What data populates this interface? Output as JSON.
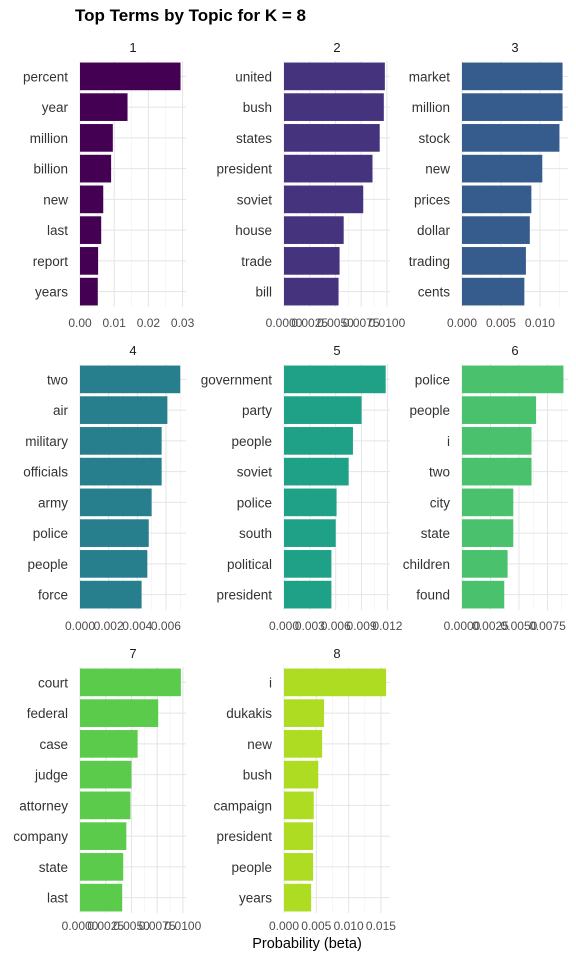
{
  "chart_data": {
    "type": "bar",
    "orientation": "horizontal",
    "facet": true,
    "title": "Top Terms by Topic for K = 8",
    "xlabel": "Probability (beta)",
    "ylabel": "",
    "grid": true,
    "legend": "none",
    "panels": [
      {
        "strip": "1",
        "color": "#440154",
        "xlim": [
          0,
          0.031
        ],
        "ticks": [
          0,
          0.01,
          0.02,
          0.03
        ],
        "tick_labels": [
          "0.00",
          "0.01",
          "0.02",
          "0.03"
        ],
        "categories": [
          "percent",
          "year",
          "million",
          "billion",
          "new",
          "last",
          "report",
          "years"
        ],
        "values": [
          0.0294,
          0.0139,
          0.0096,
          0.0091,
          0.0068,
          0.0062,
          0.0053,
          0.0052
        ]
      },
      {
        "strip": "2",
        "color": "#46337E",
        "xlim": [
          0,
          0.0103
        ],
        "ticks": [
          0,
          0.0025,
          0.005,
          0.0075,
          0.01
        ],
        "tick_labels": [
          "0.0000",
          "0.0025",
          "0.0050",
          "0.0075",
          "0.0100"
        ],
        "categories": [
          "united",
          "bush",
          "states",
          "president",
          "soviet",
          "house",
          "trade",
          "bill"
        ],
        "values": [
          0.0098,
          0.0097,
          0.0093,
          0.0086,
          0.0077,
          0.0058,
          0.0054,
          0.0053
        ]
      },
      {
        "strip": "3",
        "color": "#365C8D",
        "xlim": [
          0,
          0.0136
        ],
        "ticks": [
          0,
          0.005,
          0.01
        ],
        "tick_labels": [
          "0.000",
          "0.005",
          "0.010"
        ],
        "categories": [
          "market",
          "million",
          "stock",
          "new",
          "prices",
          "dollar",
          "trading",
          "cents"
        ],
        "values": [
          0.0129,
          0.0129,
          0.0125,
          0.0103,
          0.0089,
          0.0087,
          0.0082,
          0.008
        ]
      },
      {
        "strip": "4",
        "color": "#277F8E",
        "xlim": [
          0,
          0.0074
        ],
        "ticks": [
          0,
          0.002,
          0.004,
          0.006
        ],
        "tick_labels": [
          "0.000",
          "0.002",
          "0.004",
          "0.006"
        ],
        "categories": [
          "two",
          "air",
          "military",
          "officials",
          "army",
          "police",
          "people",
          "force"
        ],
        "values": [
          0.007,
          0.0061,
          0.0057,
          0.0057,
          0.005,
          0.0048,
          0.0047,
          0.0043
        ]
      },
      {
        "strip": "5",
        "color": "#1FA187",
        "xlim": [
          0,
          0.0123
        ],
        "ticks": [
          0,
          0.003,
          0.006,
          0.009,
          0.012
        ],
        "tick_labels": [
          "0.000",
          "0.003",
          "0.006",
          "0.009",
          "0.012"
        ],
        "categories": [
          "government",
          "party",
          "people",
          "soviet",
          "police",
          "south",
          "political",
          "president"
        ],
        "values": [
          0.0118,
          0.009,
          0.008,
          0.0075,
          0.0061,
          0.006,
          0.0055,
          0.0055
        ]
      },
      {
        "strip": "6",
        "color": "#4AC16D",
        "xlim": [
          0,
          0.0093
        ],
        "ticks": [
          0,
          0.0025,
          0.005,
          0.0075
        ],
        "tick_labels": [
          "0.0000",
          "0.0025",
          "0.0050",
          "0.0075"
        ],
        "categories": [
          "police",
          "people",
          "i",
          "two",
          "city",
          "state",
          "children",
          "found"
        ],
        "values": [
          0.0089,
          0.0065,
          0.0061,
          0.0061,
          0.0045,
          0.0045,
          0.004,
          0.0037
        ]
      },
      {
        "strip": "7",
        "color": "#5BCB4C",
        "xlim": [
          0,
          0.0103
        ],
        "ticks": [
          0,
          0.0025,
          0.005,
          0.0075,
          0.01
        ],
        "tick_labels": [
          "0.0000",
          "0.0025",
          "0.0050",
          "0.0075",
          "0.0100"
        ],
        "categories": [
          "court",
          "federal",
          "case",
          "judge",
          "attorney",
          "company",
          "state",
          "last"
        ],
        "values": [
          0.0098,
          0.0076,
          0.0056,
          0.005,
          0.0049,
          0.0045,
          0.0042,
          0.0041
        ]
      },
      {
        "strip": "8",
        "color": "#ADDC22",
        "xlim": [
          0,
          0.0164
        ],
        "ticks": [
          0,
          0.005,
          0.01,
          0.015
        ],
        "tick_labels": [
          "0.000",
          "0.005",
          "0.010",
          "0.015"
        ],
        "categories": [
          "i",
          "dukakis",
          "new",
          "bush",
          "campaign",
          "president",
          "people",
          "years"
        ],
        "values": [
          0.0158,
          0.0062,
          0.0059,
          0.0053,
          0.0046,
          0.0045,
          0.0045,
          0.0042
        ]
      }
    ]
  }
}
